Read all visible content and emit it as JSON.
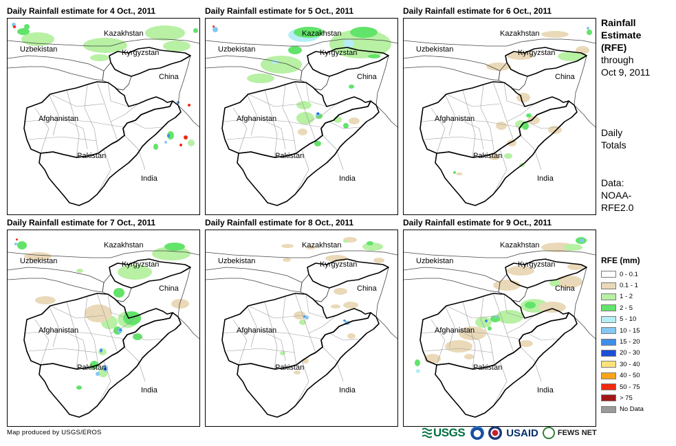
{
  "panels": [
    {
      "title": "Daily Rainfall estimate for 4 Oct., 2011"
    },
    {
      "title": "Daily Rainfall estimate for 5 Oct., 2011"
    },
    {
      "title": "Daily Rainfall estimate for 6 Oct., 2011"
    },
    {
      "title": "Daily Rainfall estimate for 7 Oct., 2011"
    },
    {
      "title": "Daily Rainfall estimate for 8 Oct., 2011"
    },
    {
      "title": "Daily Rainfall estimate for 9 Oct., 2011"
    }
  ],
  "map_labels": {
    "kazakhstan": "Kazakhstan",
    "uzbekistan": "Uzbekistan",
    "kyrgyzstan": "Kyrgyzstan",
    "china": "China",
    "afghanistan": "Afghanistan",
    "pakistan": "Pakistan",
    "india": "India"
  },
  "sidebar": {
    "title_lines": [
      "Rainfall",
      "Estimate",
      "(RFE)"
    ],
    "through_lines": [
      "through",
      "Oct 9, 2011"
    ],
    "totals_lines": [
      "Daily",
      "Totals"
    ],
    "data_lines": [
      "Data:",
      "NOAA-",
      "RFE2.0"
    ]
  },
  "legend": {
    "title": "RFE (mm)",
    "items": [
      {
        "label": "0 - 0.1",
        "color": "#ffffff"
      },
      {
        "label": "0.1 - 1",
        "color": "#ead9b8"
      },
      {
        "label": "1 - 2",
        "color": "#b8f0a4"
      },
      {
        "label": "2 - 5",
        "color": "#62e36a"
      },
      {
        "label": "5 - 10",
        "color": "#b6eef5"
      },
      {
        "label": "10 - 15",
        "color": "#85c8f2"
      },
      {
        "label": "15 - 20",
        "color": "#3e8ee8"
      },
      {
        "label": "20 - 30",
        "color": "#1c4fd6"
      },
      {
        "label": "30 - 40",
        "color": "#fce27a"
      },
      {
        "label": "40 - 50",
        "color": "#fba41a"
      },
      {
        "label": "50 - 75",
        "color": "#ef2a0f"
      },
      {
        "label": "> 75",
        "color": "#a21616"
      },
      {
        "label": "No Data",
        "color": "#9a9a9a"
      }
    ]
  },
  "footer": {
    "credit": "Map produced by USGS/EROS",
    "logos": {
      "usgs": "USGS",
      "usaid": "USAID",
      "fews": "FEWS NET"
    }
  }
}
